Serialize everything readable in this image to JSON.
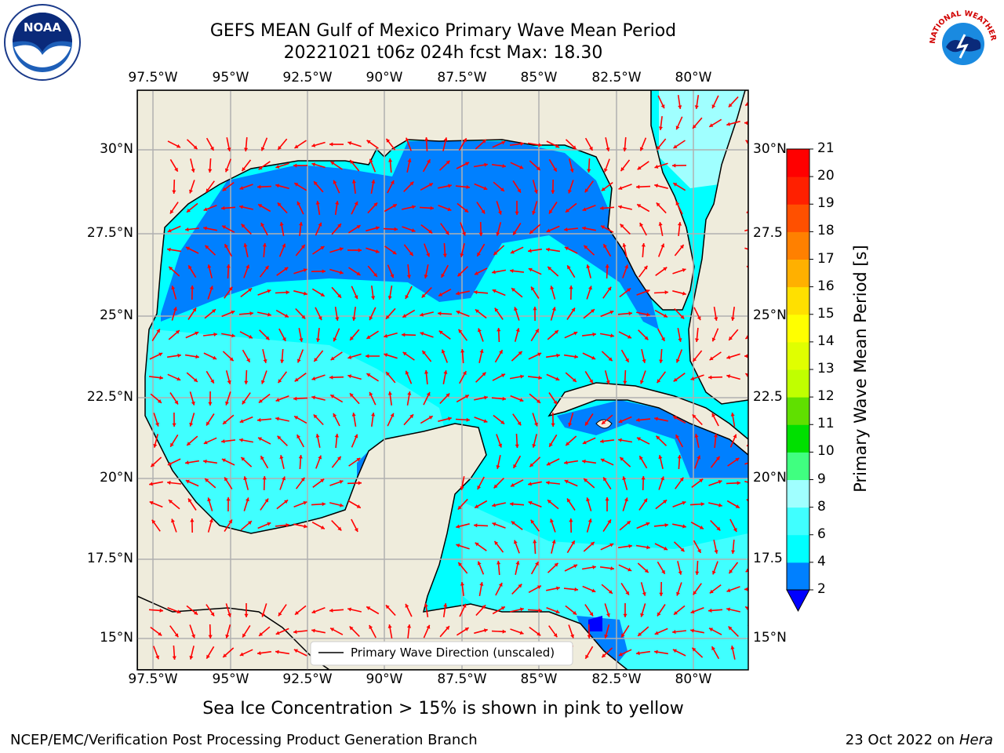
{
  "header": {
    "title_line1": "GEFS MEAN Gulf of Mexico Primary Wave Mean Period",
    "title_line2": "20221021 t06z 024h fcst   Max: 18.30"
  },
  "logos": {
    "left": "NOAA",
    "right_text": "NATIONAL WEATHER SERVICE"
  },
  "map": {
    "x_ticks": [
      "97.5°W",
      "95°W",
      "92.5°W",
      "90°W",
      "87.5°W",
      "85°W",
      "82.5°W",
      "80°W"
    ],
    "y_ticks_left": [
      "30°N",
      "27.5°N",
      "25°N",
      "22.5°N",
      "20°N",
      "17.5°N",
      "15°N"
    ],
    "y_ticks_right": [
      "30°N",
      "27.5",
      "25°N",
      "22.5",
      "20°N",
      "17.5",
      "15°N"
    ],
    "legend_label": "Primary Wave Direction (unscaled)",
    "land_color": "#efecdc",
    "arrow_color": "#ff0000"
  },
  "colorbar": {
    "title": "Primary Wave Mean Period [s]",
    "tick_labels": [
      "21",
      "20",
      "19",
      "18",
      "17",
      "16",
      "15",
      "14",
      "13",
      "12",
      "11",
      "10",
      "9",
      "8",
      "6",
      "4",
      "2"
    ],
    "levels": [
      {
        "value": 2,
        "color": "#0000ff"
      },
      {
        "value": 4,
        "color": "#0080ff"
      },
      {
        "value": 6,
        "color": "#00ffff"
      },
      {
        "value": 8,
        "color": "#40ffff"
      },
      {
        "value": 9,
        "color": "#a0ffff"
      },
      {
        "value": 10,
        "color": "#40ff80"
      },
      {
        "value": 11,
        "color": "#00e000"
      },
      {
        "value": 12,
        "color": "#60e000"
      },
      {
        "value": 13,
        "color": "#c0ff00"
      },
      {
        "value": 14,
        "color": "#e0ff00"
      },
      {
        "value": 15,
        "color": "#ffff00"
      },
      {
        "value": 16,
        "color": "#ffe000"
      },
      {
        "value": 17,
        "color": "#ffb000"
      },
      {
        "value": 18,
        "color": "#ff8000"
      },
      {
        "value": 19,
        "color": "#ff5000"
      },
      {
        "value": 20,
        "color": "#ff2000"
      },
      {
        "value": 21,
        "color": "#ff0000"
      }
    ]
  },
  "caption": "Sea Ice Concentration > 15% is shown in pink to yellow",
  "footer": {
    "left": "NCEP/EMC/Verification Post Processing Product Generation Branch",
    "right_prefix": "23 Oct 2022 on ",
    "right_italic": "Hera"
  }
}
